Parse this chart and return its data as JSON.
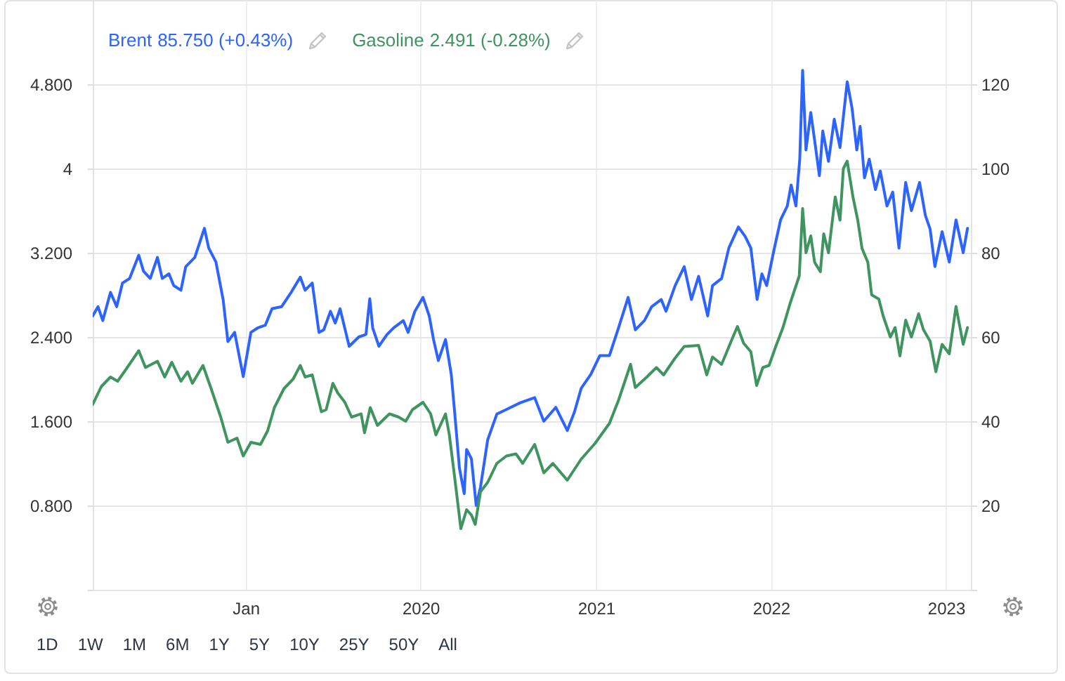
{
  "chart_data": {
    "type": "line",
    "legend": "top left",
    "grid": true,
    "xlim": [
      "2018-02-16",
      "2023-02-22"
    ],
    "xticks": [
      {
        "value": "2019",
        "label": "Jan"
      },
      "2020",
      "2021",
      "2022",
      "2023"
    ],
    "ylim": [
      0,
      5.6
    ],
    "yticks": [
      {
        "value": 0,
        "label": null
      },
      {
        "value": 0.8,
        "label": "0.800"
      },
      {
        "value": 1.6,
        "label": "1.600"
      },
      {
        "value": 2.4,
        "label": "2.400"
      },
      {
        "value": 3.2,
        "label": "3.200"
      },
      {
        "value": 4,
        "label": "4"
      },
      {
        "value": 4.8,
        "label": "4.800"
      }
    ],
    "y2lim": [
      0,
      140
    ],
    "y2ticks": [
      {
        "value": 0,
        "label": null
      },
      {
        "value": 20,
        "label": "20"
      },
      {
        "value": 40,
        "label": "40"
      },
      {
        "value": 60,
        "label": "60"
      },
      {
        "value": 80,
        "label": "80"
      },
      {
        "value": 100,
        "label": "100"
      },
      {
        "value": 120,
        "label": "120"
      }
    ],
    "annotations": [
      "85.750 (+0.43%)",
      "2.491 (-0.28%)",
      "1D",
      "1W",
      "1M",
      "6M",
      "1Y",
      "5Y",
      "10Y",
      "25Y",
      "50Y",
      "All"
    ],
    "series": [
      {
        "name": "Brent",
        "color": "#2d64ff",
        "axis": "y2",
        "x": [
          "2018-02-16",
          "2018-02-27",
          "2018-03-09",
          "2018-03-25",
          "2018-04-07",
          "2018-04-19",
          "2018-05-04",
          "2018-05-23",
          "2018-06-02",
          "2018-06-16",
          "2018-07-01",
          "2018-07-11",
          "2018-07-25",
          "2018-08-04",
          "2018-08-19",
          "2018-08-29",
          "2018-09-17",
          "2018-10-07",
          "2018-10-16",
          "2018-10-31",
          "2018-11-15",
          "2018-11-25",
          "2018-12-09",
          "2018-12-27",
          "2019-01-12",
          "2019-01-27",
          "2019-02-11",
          "2019-02-25",
          "2019-03-17",
          "2019-04-06",
          "2019-04-25",
          "2019-05-05",
          "2019-05-20",
          "2019-06-03",
          "2019-06-13",
          "2019-06-27",
          "2019-07-07",
          "2019-07-17",
          "2019-08-05",
          "2019-08-25",
          "2019-09-09",
          "2019-09-17",
          "2019-09-23",
          "2019-10-06",
          "2019-10-23",
          "2019-11-06",
          "2019-11-26",
          "2019-12-06",
          "2019-12-20",
          "2020-01-06",
          "2020-01-19",
          "2020-01-28",
          "2020-02-07",
          "2020-02-22",
          "2020-03-05",
          "2020-03-12",
          "2020-03-22",
          "2020-04-01",
          "2020-04-06",
          "2020-04-16",
          "2020-04-26",
          "2020-05-05",
          "2020-05-20",
          "2020-06-08",
          "2020-06-28",
          "2020-07-27",
          "2020-08-26",
          "2020-09-14",
          "2020-10-09",
          "2020-11-02",
          "2020-11-17",
          "2020-12-01",
          "2020-12-21",
          "2021-01-09",
          "2021-01-29",
          "2021-02-17",
          "2021-03-09",
          "2021-03-24",
          "2021-04-12",
          "2021-04-27",
          "2021-05-17",
          "2021-05-27",
          "2021-06-15",
          "2021-07-04",
          "2021-07-19",
          "2021-08-03",
          "2021-08-22",
          "2021-09-01",
          "2021-09-20",
          "2021-10-05",
          "2021-10-25",
          "2021-11-08",
          "2021-11-20",
          "2021-12-03",
          "2021-12-13",
          "2021-12-23",
          "2022-01-06",
          "2022-01-21",
          "2022-02-04",
          "2022-02-12",
          "2022-02-22",
          "2022-03-02",
          "2022-03-08",
          "2022-03-15",
          "2022-03-25",
          "2022-04-02",
          "2022-04-12",
          "2022-04-19",
          "2022-05-01",
          "2022-05-13",
          "2022-05-25",
          "2022-06-09",
          "2022-06-19",
          "2022-06-29",
          "2022-07-06",
          "2022-07-15",
          "2022-07-25",
          "2022-08-07",
          "2022-08-17",
          "2022-08-31",
          "2022-09-12",
          "2022-09-25",
          "2022-10-09",
          "2022-10-21",
          "2022-11-07",
          "2022-11-19",
          "2022-11-29",
          "2022-12-09",
          "2022-12-24",
          "2023-01-08",
          "2023-01-22",
          "2023-02-06",
          "2023-02-15"
        ],
        "values": [
          65.0,
          67.2,
          63.9,
          70.6,
          67.2,
          72.8,
          73.9,
          79.4,
          75.6,
          73.9,
          78.9,
          73.9,
          75.0,
          72.2,
          71.1,
          76.7,
          78.9,
          85.8,
          81.1,
          77.8,
          68.9,
          58.9,
          61.1,
          50.6,
          61.1,
          62.2,
          62.8,
          66.7,
          67.2,
          70.6,
          74.2,
          71.1,
          72.8,
          61.1,
          61.7,
          66.1,
          63.3,
          66.7,
          57.8,
          60.0,
          60.6,
          69.1,
          62.2,
          57.8,
          60.6,
          62.2,
          63.9,
          61.1,
          66.1,
          69.4,
          65.0,
          59.4,
          54.4,
          59.4,
          51.1,
          42.2,
          28.9,
          22.8,
          33.3,
          31.1,
          20.0,
          24.4,
          35.6,
          41.7,
          42.8,
          44.4,
          45.6,
          40.0,
          43.3,
          37.8,
          42.2,
          47.8,
          51.1,
          55.6,
          55.6,
          62.2,
          69.4,
          61.7,
          63.9,
          67.2,
          68.9,
          66.1,
          72.2,
          76.7,
          68.9,
          74.4,
          65.0,
          72.2,
          73.9,
          81.1,
          86.1,
          83.9,
          81.1,
          68.9,
          75.0,
          72.2,
          80.0,
          87.8,
          91.1,
          96.1,
          91.1,
          102.2,
          123.3,
          104.4,
          113.3,
          106.7,
          98.3,
          108.9,
          101.7,
          111.7,
          105.0,
          120.6,
          114.4,
          104.4,
          110.0,
          97.8,
          102.2,
          95.0,
          99.4,
          91.1,
          94.4,
          81.1,
          96.7,
          90.0,
          96.7,
          88.9,
          85.6,
          76.7,
          85.0,
          77.8,
          87.8,
          80.0,
          85.8
        ]
      },
      {
        "name": "Gasoline",
        "color": "#3f9460",
        "x": [
          "2018-02-16",
          "2018-03-06",
          "2018-03-25",
          "2018-04-09",
          "2018-04-29",
          "2018-05-23",
          "2018-06-06",
          "2018-07-01",
          "2018-07-16",
          "2018-07-31",
          "2018-08-19",
          "2018-09-02",
          "2018-09-12",
          "2018-10-04",
          "2018-10-21",
          "2018-11-10",
          "2018-11-25",
          "2018-12-14",
          "2018-12-27",
          "2019-01-12",
          "2019-02-01",
          "2019-02-16",
          "2019-03-02",
          "2019-03-22",
          "2019-04-10",
          "2019-04-25",
          "2019-05-05",
          "2019-05-20",
          "2019-06-08",
          "2019-06-18",
          "2019-07-02",
          "2019-07-12",
          "2019-07-27",
          "2019-08-10",
          "2019-08-30",
          "2019-09-06",
          "2019-09-18",
          "2019-10-03",
          "2019-10-28",
          "2019-11-16",
          "2019-12-01",
          "2019-12-15",
          "2020-01-06",
          "2020-01-22",
          "2020-02-02",
          "2020-02-22",
          "2020-03-01",
          "2020-03-12",
          "2020-03-25",
          "2020-04-06",
          "2020-04-16",
          "2020-04-24",
          "2020-05-05",
          "2020-05-20",
          "2020-06-08",
          "2020-06-28",
          "2020-07-18",
          "2020-08-01",
          "2020-08-26",
          "2020-09-14",
          "2020-10-03",
          "2020-11-02",
          "2020-12-01",
          "2020-12-30",
          "2021-01-29",
          "2021-02-17",
          "2021-03-14",
          "2021-03-24",
          "2021-04-17",
          "2021-05-07",
          "2021-05-22",
          "2021-06-15",
          "2021-07-04",
          "2021-08-03",
          "2021-08-20",
          "2021-09-01",
          "2021-09-20",
          "2021-10-10",
          "2021-10-23",
          "2021-11-05",
          "2021-11-20",
          "2021-12-02",
          "2021-12-15",
          "2021-12-28",
          "2022-01-11",
          "2022-01-26",
          "2022-02-10",
          "2022-03-01",
          "2022-03-08",
          "2022-03-15",
          "2022-03-25",
          "2022-04-02",
          "2022-04-14",
          "2022-04-21",
          "2022-05-01",
          "2022-05-15",
          "2022-05-25",
          "2022-06-01",
          "2022-06-09",
          "2022-06-21",
          "2022-07-01",
          "2022-07-10",
          "2022-07-22",
          "2022-07-30",
          "2022-08-14",
          "2022-08-23",
          "2022-09-07",
          "2022-09-17",
          "2022-09-27",
          "2022-10-09",
          "2022-10-21",
          "2022-11-05",
          "2022-11-15",
          "2022-11-29",
          "2022-12-11",
          "2022-12-24",
          "2023-01-08",
          "2023-01-22",
          "2023-02-06",
          "2023-02-15"
        ],
        "values": [
          1.76,
          1.93,
          2.02,
          1.98,
          2.11,
          2.27,
          2.11,
          2.17,
          2.02,
          2.16,
          1.98,
          2.07,
          1.96,
          2.13,
          1.91,
          1.64,
          1.4,
          1.44,
          1.27,
          1.4,
          1.38,
          1.51,
          1.73,
          1.91,
          2.0,
          2.13,
          2.02,
          2.04,
          1.69,
          1.71,
          1.96,
          1.87,
          1.78,
          1.64,
          1.67,
          1.49,
          1.73,
          1.56,
          1.67,
          1.64,
          1.6,
          1.71,
          1.78,
          1.67,
          1.47,
          1.67,
          1.47,
          1.07,
          0.58,
          0.76,
          0.71,
          0.62,
          0.93,
          1.02,
          1.2,
          1.27,
          1.29,
          1.2,
          1.38,
          1.11,
          1.2,
          1.04,
          1.24,
          1.39,
          1.58,
          1.8,
          2.14,
          1.92,
          2.02,
          2.11,
          2.04,
          2.2,
          2.31,
          2.32,
          2.04,
          2.21,
          2.14,
          2.36,
          2.5,
          2.34,
          2.26,
          1.94,
          2.11,
          2.13,
          2.31,
          2.49,
          2.72,
          2.98,
          3.62,
          3.2,
          3.36,
          3.11,
          3.02,
          3.38,
          3.2,
          3.73,
          3.51,
          4.0,
          4.07,
          3.73,
          3.51,
          3.24,
          3.11,
          2.8,
          2.76,
          2.6,
          2.4,
          2.49,
          2.22,
          2.56,
          2.4,
          2.62,
          2.47,
          2.36,
          2.07,
          2.33,
          2.24,
          2.69,
          2.33,
          2.49
        ]
      }
    ]
  }
}
